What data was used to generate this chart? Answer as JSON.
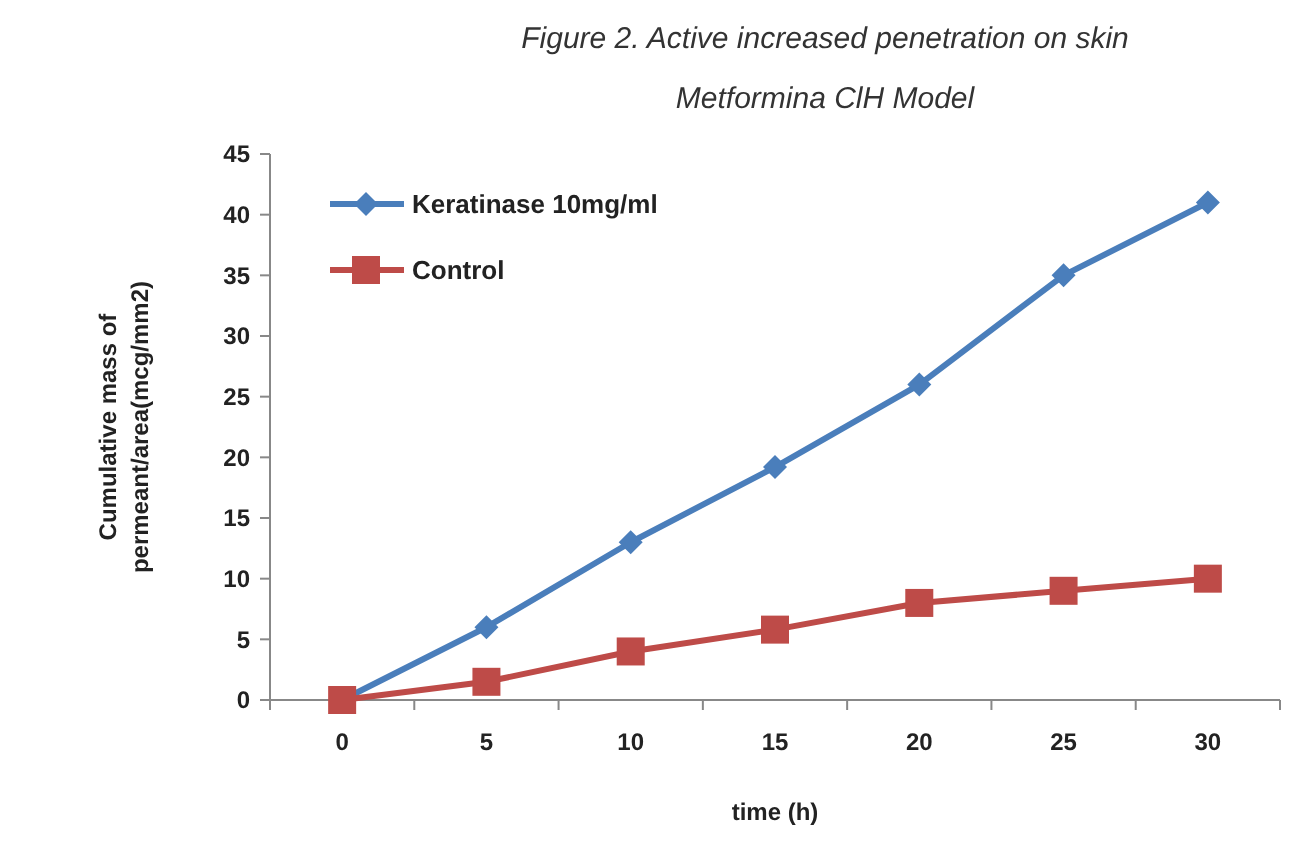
{
  "chart_data": {
    "type": "line",
    "title": "Figure 2. Active increased penetration on skin",
    "subtitle": "Metformina ClH Model",
    "xlabel": "time (h)",
    "ylabel": "Cumulative mass of\npermeant/area(mcg/mm2)",
    "categories": [
      "0",
      "5",
      "10",
      "15",
      "20",
      "25",
      "30"
    ],
    "series": [
      {
        "name": "Keratinase 10mg/ml",
        "color": "#4a7ebb",
        "marker": "diamond",
        "values": [
          0,
          6,
          13,
          19.2,
          26,
          35,
          41
        ]
      },
      {
        "name": "Control",
        "color": "#be4b48",
        "marker": "square",
        "values": [
          0,
          1.5,
          4,
          5.8,
          8,
          9,
          10
        ]
      }
    ],
    "ylim": [
      0,
      45
    ],
    "yticks": [
      0,
      5,
      10,
      15,
      20,
      25,
      30,
      35,
      40,
      45
    ],
    "legend": "top left",
    "grid": false,
    "line_style": "solid"
  }
}
